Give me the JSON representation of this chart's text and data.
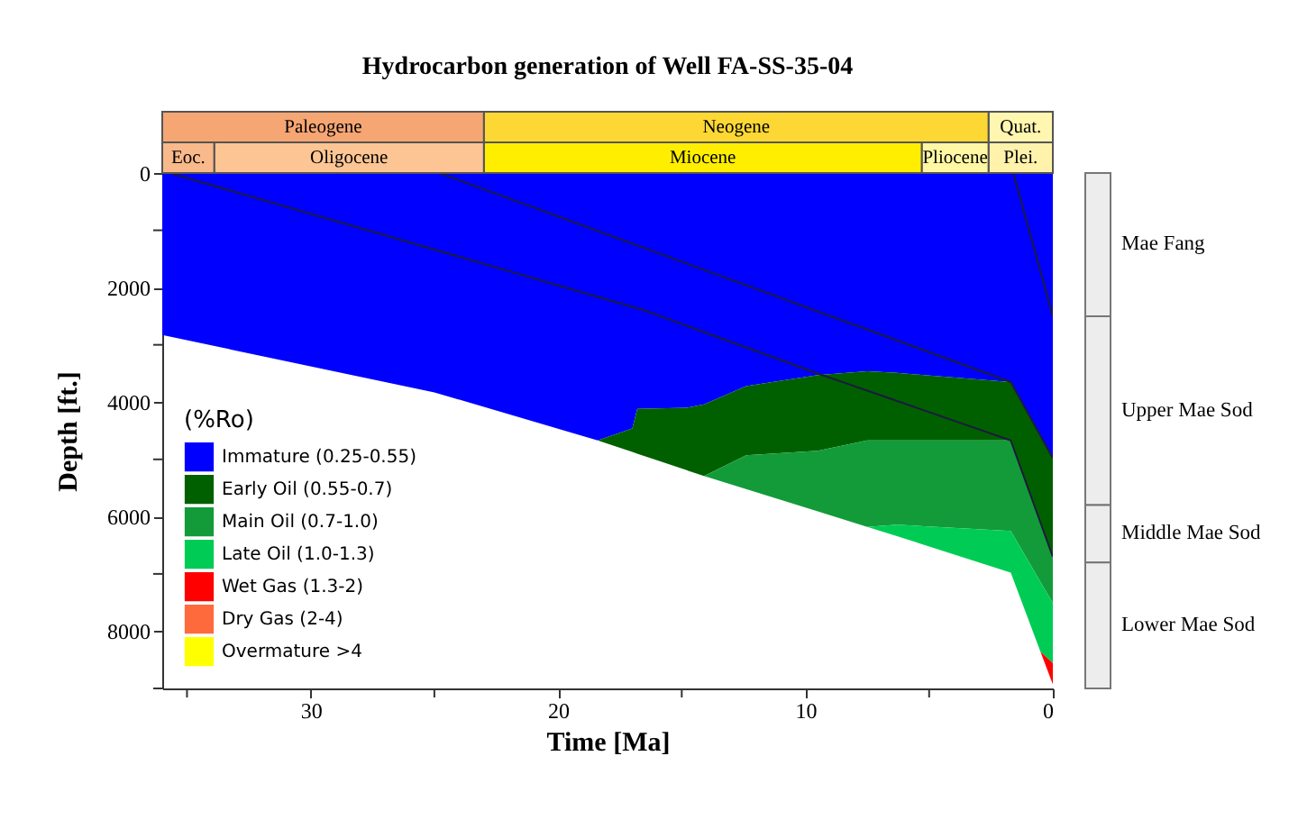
{
  "chart_data": [
    {
      "type": "bar",
      "title": "Hydrocarbon generation of Well FA-SS-35-04",
      "orientation": "horizontal",
      "stacked": true,
      "categories": [
        null,
        null
      ],
      "xlim": [
        36,
        0
      ],
      "tick_labels": false,
      "series": [
        {
          "name": "Quat.",
          "color": "#fff6b0",
          "values": [
            2.6,
            null
          ]
        },
        {
          "name": "Plei.",
          "color": "#fff2aa",
          "values": [
            null,
            2.6
          ]
        },
        {
          "name": "Neogene",
          "color": "#fdd835",
          "values": [
            20.4,
            null
          ]
        },
        {
          "name": "Pliocene",
          "color": "#fff7a3",
          "values": [
            null,
            2.7
          ]
        },
        {
          "name": "Miocene",
          "color": "#ffee00",
          "values": [
            null,
            17.7
          ]
        },
        {
          "name": "Paleogene",
          "color": "#f6a673",
          "values": [
            13,
            null
          ]
        },
        {
          "name": "Oligocene",
          "color": "#fcc593",
          "values": [
            null,
            10.9
          ]
        },
        {
          "name": "Eoc.",
          "color": "#f9b98a",
          "values": [
            null,
            2.1
          ]
        }
      ]
    },
    {
      "type": "area",
      "xlabel": "Time [Ma]",
      "ylabel": "Depth [ft.]",
      "legend_title": "(%Ro)",
      "legend": "bottom left",
      "stacked": true,
      "xlim": [
        36,
        0
      ],
      "xticks": [
        {
          "value": 35,
          "label": null
        },
        30,
        {
          "value": 25,
          "label": null
        },
        20,
        {
          "value": 15,
          "label": null
        },
        10,
        {
          "value": 5,
          "label": null
        },
        0
      ],
      "ylim": [
        9000,
        0
      ],
      "yticks": [
        0,
        {
          "value": 1000,
          "label": null
        },
        2000,
        {
          "value": 3000,
          "label": null
        },
        4000,
        {
          "value": 5000,
          "label": null
        },
        6000,
        {
          "value": 7000,
          "label": null
        },
        8000,
        {
          "value": 9000,
          "label": null
        }
      ],
      "x": [
        36,
        25,
        18.4,
        17,
        16.8,
        14.8,
        14.1,
        12.4,
        9.5,
        7.5,
        6.3,
        1.7,
        0.5,
        0
      ],
      "series": [
        {
          "name": "Immature (0.25-0.55)",
          "color": "#0000ff",
          "values": [
            2830,
            3830,
            4670,
            4460,
            4120,
            4100,
            4040,
            3720,
            3530,
            3460,
            3490,
            3650,
            4590,
            4980
          ]
        },
        {
          "name": "Early Oil (0.55-0.7)",
          "color": "#006000",
          "values": [
            0,
            0,
            0,
            410,
            780,
            1090,
            1250,
            1210,
            1320,
            1210,
            1180,
            1020,
            1510,
            1720
          ]
        },
        {
          "name": "Main Oil (0.7-1.0)",
          "color": "#139b3a",
          "values": [
            0,
            0,
            0,
            0,
            0,
            0,
            0,
            590,
            1060,
            1510,
            1470,
            1580,
            1040,
            810
          ]
        },
        {
          "name": "Late Oil (1.0-1.3)",
          "color": "#00cc55",
          "values": [
            0,
            0,
            0,
            0,
            0,
            0,
            0,
            0,
            0,
            0,
            200,
            730,
            1220,
            1050
          ]
        },
        {
          "name": "Wet Gas (1.3-2)",
          "color": "#ff0000",
          "values": [
            0,
            0,
            0,
            0,
            0,
            0,
            0,
            0,
            0,
            0,
            0,
            0,
            0,
            370
          ]
        },
        {
          "name": "Dry Gas (2-4)",
          "color": "#ff6a3d",
          "values": [
            null,
            null,
            null,
            null,
            null,
            null,
            null,
            null,
            null,
            null,
            null,
            null,
            null,
            null
          ]
        },
        {
          "name": "Overmature >4",
          "color": "#ffff00",
          "values": [
            null,
            null,
            null,
            null,
            null,
            null,
            null,
            null,
            null,
            null,
            null,
            null,
            null,
            null
          ]
        },
        {
          "type": "line",
          "color": "#1c1c3c",
          "x": [
            35.7,
            16.5,
            9.5,
            1.7,
            0
          ],
          "values": [
            0,
            2400,
            3500,
            4670,
            6700
          ]
        },
        {
          "type": "line",
          "color": "#1c1c3c",
          "x": [
            24.8,
            1.7,
            0
          ],
          "values": [
            0,
            3650,
            4980
          ]
        },
        {
          "type": "line",
          "color": "#1c1c3c",
          "x": [
            1.6,
            0
          ],
          "values": [
            0,
            2500
          ]
        }
      ]
    },
    {
      "type": "bar",
      "stacked": true,
      "categories": [
        null
      ],
      "ylim": [
        9000,
        0
      ],
      "tick_labels": false,
      "series": [
        {
          "name": "Mae Fang",
          "color": "#ededed",
          "values": [
            2500
          ]
        },
        {
          "name": "Upper Mae Sod",
          "color": "#ededed",
          "values": [
            3300
          ]
        },
        {
          "name": "Middle Mae Sod",
          "color": "#ededed",
          "values": [
            1000
          ]
        },
        {
          "name": "Lower Mae Sod",
          "color": "#ededed",
          "values": [
            2200
          ]
        }
      ]
    }
  ]
}
